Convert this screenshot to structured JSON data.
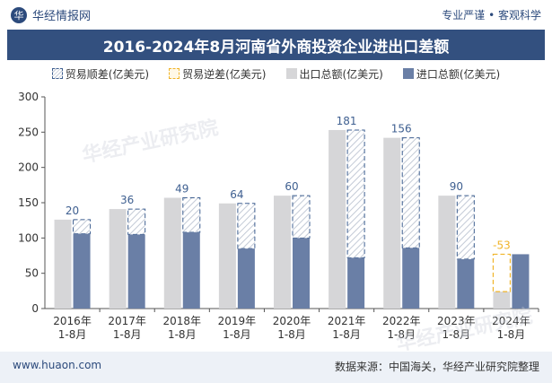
{
  "header": {
    "brand": "华经情报网",
    "brand_logo": "华",
    "tagline": "专业严谨 • 客观科学",
    "title": "2016-2024年8月河南省外商投资企业进出口差额"
  },
  "chart_data": {
    "type": "bar",
    "title": "2016-2024年8月河南省外商投资企业进出口差额",
    "categories": [
      "2016年\n1-8月",
      "2017年\n1-8月",
      "2018年\n1-8月",
      "2019年\n1-8月",
      "2020年\n1-8月",
      "2021年\n1-8月",
      "2022年\n1-8月",
      "2023年\n1-8月",
      "2024年\n1-8月"
    ],
    "series": [
      {
        "name": "出口总额(亿美元)",
        "values": [
          126,
          141,
          157,
          149,
          160,
          253,
          242,
          160,
          24
        ]
      },
      {
        "name": "进口总额(亿美元)",
        "values": [
          106,
          105,
          108,
          85,
          100,
          72,
          86,
          70,
          77
        ]
      }
    ],
    "balance": {
      "labels": [
        "20",
        "36",
        "49",
        "64",
        "60",
        "181",
        "156",
        "90",
        "-53"
      ],
      "types": [
        "surplus",
        "surplus",
        "surplus",
        "surplus",
        "surplus",
        "surplus",
        "surplus",
        "surplus",
        "deficit"
      ]
    },
    "legend": [
      {
        "key": "surplus",
        "label": "贸易顺差(亿美元)"
      },
      {
        "key": "deficit",
        "label": "贸易逆差(亿美元)"
      },
      {
        "key": "export",
        "label": "出口总额(亿美元)"
      },
      {
        "key": "import",
        "label": "进口总额(亿美元)"
      }
    ],
    "ylim": [
      0,
      300
    ],
    "yticks": [
      0,
      50,
      100,
      150,
      200,
      250,
      300
    ],
    "xlabel": "",
    "ylabel": "",
    "grid": false,
    "colors": {
      "export": "#d6d6d8",
      "import": "#6a7fa6",
      "surplus_border": "#3e5f90",
      "surplus_label": "#3e5f90",
      "deficit_border": "#f0b429",
      "deficit_label": "#f0b429"
    }
  },
  "watermark": "华经产业研究院",
  "footer": {
    "site": "www.huaon.com",
    "source": "数据来源：中国海关，华经产业研究院整理"
  }
}
